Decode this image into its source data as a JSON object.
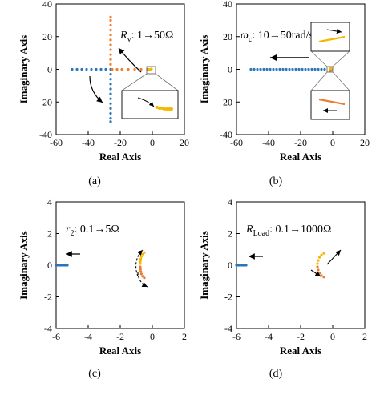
{
  "chart_data": [
    {
      "type": "scatter",
      "panel_label": "(a)",
      "xlabel": "Real Axis",
      "ylabel": "Imaginary Axis",
      "xlim": [
        -60,
        20
      ],
      "ylim": [
        -40,
        40
      ],
      "xticks": [
        -60,
        -40,
        -20,
        0,
        20
      ],
      "yticks": [
        -40,
        -20,
        0,
        20,
        40
      ],
      "annotation": {
        "symbol": "R",
        "sub": "v",
        "text": ": 1→50Ω"
      },
      "colors": {
        "blue": "#2e75b6",
        "orange": "#ed7d31",
        "gold": "#f5b800"
      },
      "series": [
        {
          "color": "blue",
          "points": [
            [
              -50,
              0
            ],
            [
              -47,
              0
            ],
            [
              -44,
              0
            ],
            [
              -41,
              0
            ],
            [
              -38,
              0
            ],
            [
              -35,
              0
            ],
            [
              -32,
              0
            ],
            [
              -29,
              0
            ],
            [
              -26,
              0
            ],
            [
              -26,
              -3
            ],
            [
              -26,
              -6
            ],
            [
              -26,
              -9
            ],
            [
              -26,
              -12
            ],
            [
              -26,
              -15
            ],
            [
              -26,
              -18
            ],
            [
              -26,
              -21
            ],
            [
              -26,
              -24
            ],
            [
              -26,
              -27
            ],
            [
              -26,
              -30
            ],
            [
              -26,
              -32
            ]
          ]
        },
        {
          "color": "orange",
          "points": [
            [
              -3,
              0
            ],
            [
              -7,
              0
            ],
            [
              -11,
              0
            ],
            [
              -15,
              0
            ],
            [
              -19,
              0
            ],
            [
              -22,
              0
            ],
            [
              -25,
              0
            ],
            [
              -26,
              3
            ],
            [
              -26,
              6
            ],
            [
              -26,
              9
            ],
            [
              -26,
              12
            ],
            [
              -26,
              15
            ],
            [
              -26,
              18
            ],
            [
              -26,
              21
            ],
            [
              -26,
              24
            ],
            [
              -26,
              27
            ],
            [
              -26,
              30
            ],
            [
              -26,
              32
            ]
          ]
        },
        {
          "color": "gold",
          "points": [
            [
              -1,
              0
            ],
            [
              -2,
              0
            ],
            [
              -0.5,
              0.3
            ],
            [
              -1.5,
              -0.3
            ]
          ]
        }
      ]
    },
    {
      "type": "scatter",
      "panel_label": "(b)",
      "xlabel": "Real Axis",
      "ylabel": "Imaginary Axis",
      "xlim": [
        -60,
        20
      ],
      "ylim": [
        -40,
        40
      ],
      "xticks": [
        -60,
        -40,
        -20,
        0,
        20
      ],
      "yticks": [
        -40,
        -20,
        0,
        20,
        40
      ],
      "annotation": {
        "symbol": "ω",
        "sub": "c",
        "text": ": 10→50rad/s"
      },
      "colors": {
        "blue": "#2e75b6",
        "orange": "#ed7d31",
        "gold": "#f5b800"
      },
      "series": [
        {
          "color": "blue",
          "points": [
            [
              -51,
              0
            ],
            [
              -49,
              0
            ],
            [
              -47,
              0
            ],
            [
              -45,
              0
            ],
            [
              -43,
              0
            ],
            [
              -41,
              0
            ],
            [
              -39,
              0
            ],
            [
              -37,
              0
            ],
            [
              -35,
              0
            ],
            [
              -33,
              0
            ],
            [
              -31,
              0
            ],
            [
              -29,
              0
            ],
            [
              -27,
              0
            ],
            [
              -25,
              0
            ],
            [
              -23,
              0
            ],
            [
              -21,
              0
            ],
            [
              -19,
              0
            ],
            [
              -17,
              0
            ],
            [
              -15,
              0
            ],
            [
              -13,
              0
            ],
            [
              -11,
              0
            ],
            [
              -9,
              0
            ],
            [
              -7,
              0
            ],
            [
              -5,
              0
            ]
          ]
        },
        {
          "color": "orange",
          "points": [
            [
              -1,
              -0.5
            ],
            [
              -1.3,
              -0.7
            ],
            [
              -1.6,
              -0.9
            ]
          ]
        },
        {
          "color": "gold",
          "points": [
            [
              -1,
              0.5
            ],
            [
              -1.3,
              0.7
            ],
            [
              -1.6,
              0.9
            ]
          ]
        }
      ]
    },
    {
      "type": "scatter",
      "panel_label": "(c)",
      "xlabel": "Real Axis",
      "ylabel": "Imaginary Axis",
      "xlim": [
        -6,
        2
      ],
      "ylim": [
        -4,
        4
      ],
      "xticks": [
        -6,
        -4,
        -2,
        0,
        2
      ],
      "yticks": [
        -4,
        -2,
        0,
        2,
        4
      ],
      "annotation": {
        "symbol": "r",
        "sub": "2",
        "text": ": 0.1→5Ω"
      },
      "colors": {
        "blue": "#2e75b6",
        "orange": "#ed7d31",
        "gold": "#f5b800"
      },
      "series": [
        {
          "color": "blue",
          "points": [
            [
              -6,
              0
            ],
            [
              -5.9,
              0
            ],
            [
              -5.8,
              0
            ],
            [
              -5.7,
              0
            ],
            [
              -5.6,
              0
            ],
            [
              -5.5,
              0
            ],
            [
              -5.4,
              0
            ],
            [
              -5.3,
              0
            ]
          ]
        },
        {
          "color": "gold",
          "points": [
            [
              -0.5,
              0.8
            ],
            [
              -0.6,
              0.7
            ],
            [
              -0.68,
              0.55
            ],
            [
              -0.72,
              0.4
            ],
            [
              -0.74,
              0.25
            ],
            [
              -0.75,
              0.1
            ]
          ]
        },
        {
          "color": "orange",
          "points": [
            [
              -0.5,
              -0.8
            ],
            [
              -0.6,
              -0.7
            ],
            [
              -0.68,
              -0.55
            ],
            [
              -0.72,
              -0.4
            ],
            [
              -0.74,
              -0.25
            ],
            [
              -0.75,
              -0.1
            ]
          ]
        }
      ]
    },
    {
      "type": "scatter",
      "panel_label": "(d)",
      "xlabel": "Real Axis",
      "ylabel": "Imaginary Axis",
      "xlim": [
        -6,
        2
      ],
      "ylim": [
        -4,
        4
      ],
      "xticks": [
        -6,
        -4,
        -2,
        0,
        2
      ],
      "yticks": [
        -4,
        -2,
        0,
        2,
        4
      ],
      "annotation": {
        "symbol": "R",
        "sub": "Load",
        "text": ": 0.1→1000Ω"
      },
      "colors": {
        "blue": "#2e75b6",
        "orange": "#ed7d31",
        "gold": "#f5b800"
      },
      "series": [
        {
          "color": "blue",
          "points": [
            [
              -6,
              0
            ],
            [
              -5.9,
              0
            ],
            [
              -5.8,
              0
            ],
            [
              -5.7,
              0
            ],
            [
              -5.6,
              0
            ],
            [
              -5.5,
              0
            ],
            [
              -5.4,
              0
            ]
          ]
        },
        {
          "color": "gold",
          "points": [
            [
              -0.95,
              0.1
            ],
            [
              -0.9,
              0.3
            ],
            [
              -0.82,
              0.5
            ],
            [
              -0.7,
              0.65
            ],
            [
              -0.55,
              0.75
            ]
          ]
        },
        {
          "color": "orange",
          "points": [
            [
              -0.95,
              -0.1
            ],
            [
              -0.9,
              -0.3
            ],
            [
              -0.82,
              -0.5
            ],
            [
              -0.7,
              -0.65
            ],
            [
              -0.55,
              -0.75
            ]
          ]
        }
      ]
    }
  ]
}
